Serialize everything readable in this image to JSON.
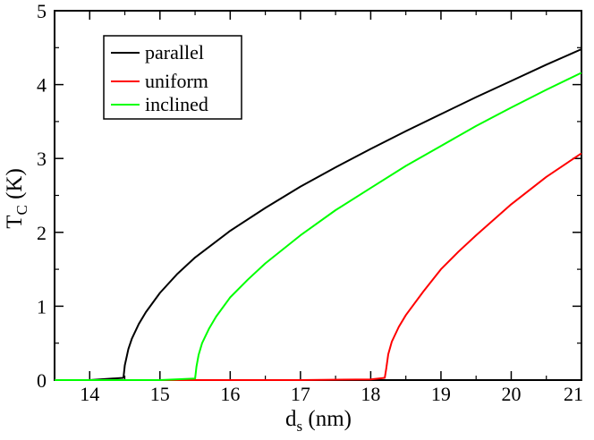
{
  "chart_data": {
    "type": "line",
    "xlabel": {
      "main": "d",
      "sub": "s",
      "unit": " (nm)"
    },
    "ylabel": {
      "main": "T",
      "sub": "C",
      "unit": " (K)"
    },
    "xlim": [
      13.5,
      21
    ],
    "ylim": [
      0,
      5
    ],
    "xticks": [
      14,
      15,
      16,
      17,
      18,
      19,
      20,
      21
    ],
    "yticks": [
      0,
      1,
      2,
      3,
      4,
      5
    ],
    "grid": false,
    "legend_position": "top-left",
    "series": [
      {
        "name": "parallel",
        "color": "#000000",
        "x": [
          13.5,
          14.0,
          14.48,
          14.5,
          14.55,
          14.6,
          14.7,
          14.8,
          15.0,
          15.25,
          15.5,
          16.0,
          16.5,
          17.0,
          17.5,
          18.0,
          18.5,
          19.0,
          19.5,
          20.0,
          20.5,
          21.0
        ],
        "y": [
          0,
          0,
          0.03,
          0.2,
          0.42,
          0.56,
          0.76,
          0.92,
          1.18,
          1.44,
          1.66,
          2.02,
          2.33,
          2.62,
          2.88,
          3.13,
          3.37,
          3.6,
          3.83,
          4.05,
          4.27,
          4.48
        ]
      },
      {
        "name": "uniform",
        "color": "#ff0000",
        "x": [
          13.5,
          15.0,
          16.0,
          17.0,
          18.0,
          18.2,
          18.22,
          18.25,
          18.3,
          18.4,
          18.5,
          18.75,
          19.0,
          19.25,
          19.5,
          20.0,
          20.5,
          21.0
        ],
        "y": [
          0,
          0,
          0,
          0,
          0.01,
          0.03,
          0.15,
          0.35,
          0.52,
          0.72,
          0.88,
          1.2,
          1.5,
          1.74,
          1.96,
          2.38,
          2.75,
          3.07
        ]
      },
      {
        "name": "inclined",
        "color": "#00ff00",
        "x": [
          13.5,
          14.0,
          15.0,
          15.5,
          15.52,
          15.55,
          15.6,
          15.7,
          15.8,
          16.0,
          16.25,
          16.5,
          17.0,
          17.5,
          18.0,
          18.5,
          19.0,
          19.5,
          20.0,
          20.5,
          21.0
        ],
        "y": [
          0,
          0,
          0,
          0.02,
          0.18,
          0.34,
          0.5,
          0.7,
          0.86,
          1.12,
          1.36,
          1.58,
          1.96,
          2.3,
          2.6,
          2.9,
          3.17,
          3.44,
          3.69,
          3.93,
          4.16
        ]
      }
    ]
  }
}
